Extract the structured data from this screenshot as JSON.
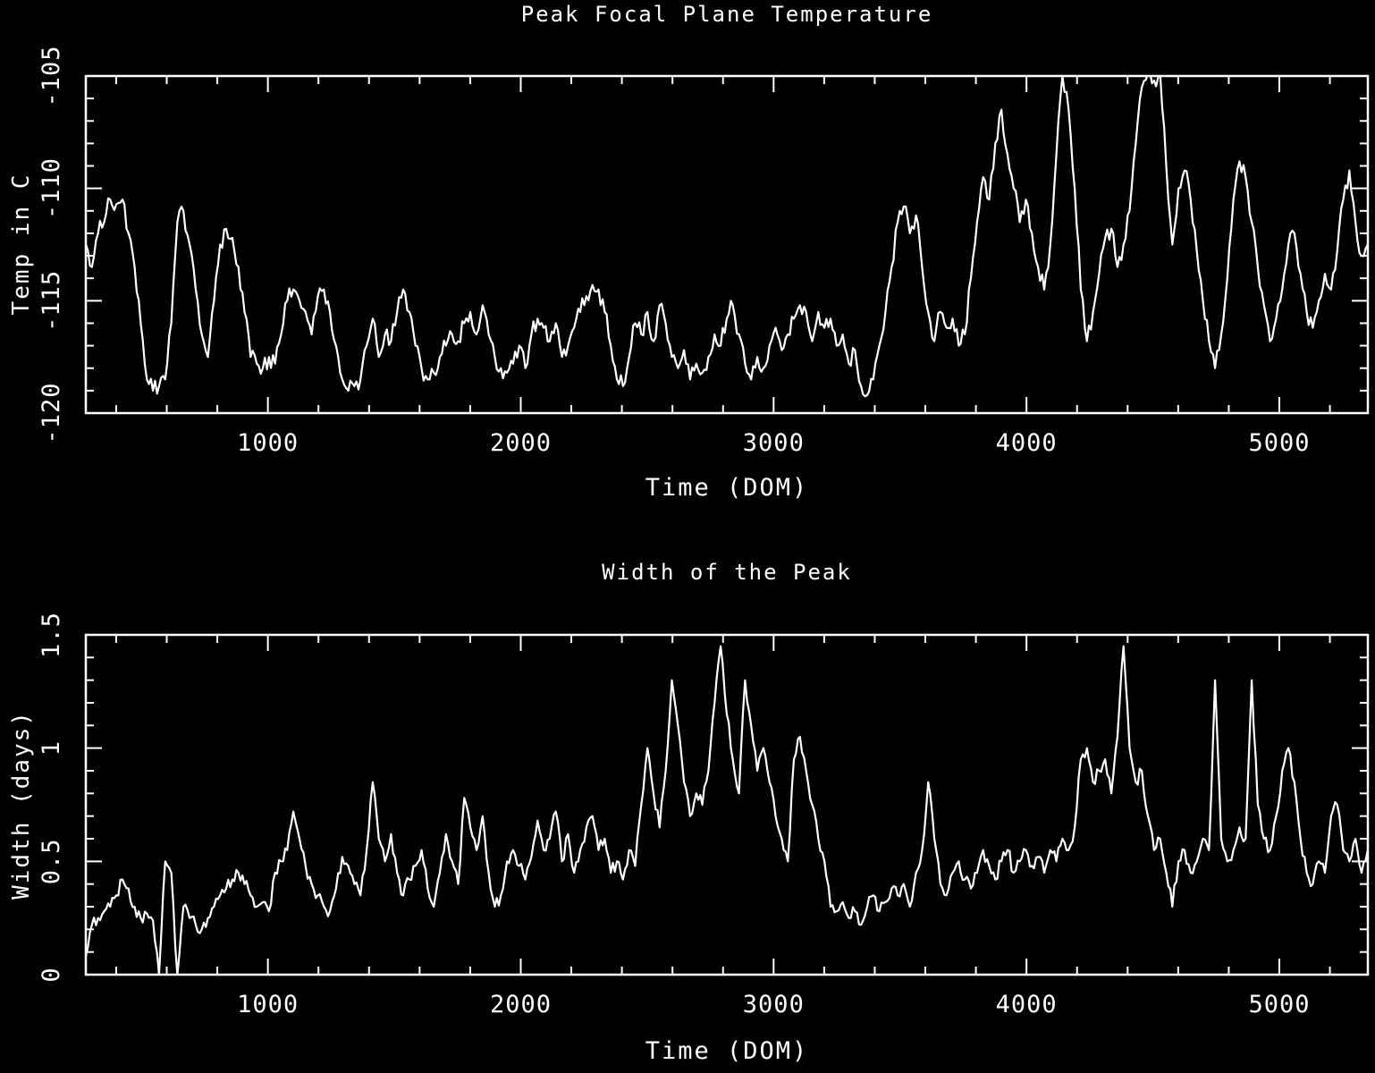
{
  "page": {
    "background": "#000000",
    "plot_color": "#ffffff"
  },
  "chart_data": [
    {
      "type": "line",
      "title": "Peak Focal Plane Temperature",
      "xlabel": "Time (DOM)",
      "ylabel": "Temp in C",
      "xlim": [
        280,
        5350
      ],
      "ylim": [
        -120,
        -105
      ],
      "grid": false,
      "legend": "none",
      "x_major_ticks": [
        1000,
        2000,
        3000,
        4000,
        5000
      ],
      "x_tick_labels": [
        "1000",
        "2000",
        "3000",
        "4000",
        "5000"
      ],
      "x_minor_step": 200,
      "y_major_ticks": [
        -120,
        -115,
        -110,
        -105
      ],
      "y_tick_labels": [
        "-120",
        "-115",
        "-110",
        "-105"
      ],
      "y_minor_step": 1,
      "x": {
        "start": 280,
        "step": 24.14,
        "count": 211
      },
      "y": [
        -112.5,
        -113.5,
        -112,
        -111.5,
        -110.5,
        -110.7,
        -110.5,
        -112,
        -113.5,
        -116,
        -118.5,
        -119,
        -118.8,
        -118.5,
        -116,
        -111.5,
        -111,
        -112.5,
        -114.5,
        -116.5,
        -117.5,
        -115,
        -112.5,
        -111.8,
        -112.2,
        -113.5,
        -115.5,
        -117.5,
        -117.8,
        -118,
        -117.5,
        -117.8,
        -116.5,
        -115,
        -114.5,
        -115,
        -115.5,
        -116.5,
        -114.8,
        -114.5,
        -115.5,
        -117,
        -118.5,
        -119,
        -118.8,
        -118.5,
        -117,
        -115.8,
        -117.5,
        -116.5,
        -116.8,
        -115.5,
        -114.5,
        -115.5,
        -117,
        -118,
        -118.5,
        -118.2,
        -117.5,
        -117,
        -116.5,
        -116.8,
        -116,
        -115.5,
        -116.5,
        -115.2,
        -116.5,
        -117.5,
        -118,
        -118.2,
        -117.8,
        -117,
        -118,
        -116.5,
        -115.8,
        -116.2,
        -116.8,
        -116,
        -117.5,
        -117,
        -116.2,
        -115.5,
        -114.8,
        -114.3,
        -114.5,
        -115.5,
        -117,
        -118.5,
        -118.8,
        -117.5,
        -116,
        -116.5,
        -115.5,
        -116.8,
        -115.2,
        -116,
        -117.5,
        -118,
        -117.2,
        -118.5,
        -117.8,
        -118.2,
        -117.5,
        -116.5,
        -117,
        -115.8,
        -115.2,
        -116.5,
        -117.8,
        -118.5,
        -117.5,
        -118,
        -117,
        -116.2,
        -117.2,
        -116.5,
        -115.8,
        -115.2,
        -115.5,
        -116.8,
        -115.5,
        -116.2,
        -115.8,
        -117,
        -116.5,
        -117.8,
        -117.2,
        -118.8,
        -119.2,
        -118.5,
        -117,
        -115.5,
        -113.5,
        -111.5,
        -110.8,
        -112,
        -111.2,
        -113.5,
        -115.5,
        -116.8,
        -115.5,
        -116.2,
        -115.8,
        -117,
        -116.5,
        -114,
        -111.5,
        -109.5,
        -110.5,
        -108,
        -106.5,
        -108.5,
        -110,
        -111.5,
        -110.5,
        -112,
        -113.5,
        -114.5,
        -112.5,
        -108.5,
        -105,
        -106.5,
        -110,
        -114.5,
        -116.8,
        -115.5,
        -113.8,
        -112.2,
        -111.8,
        -113.5,
        -112.5,
        -111,
        -108,
        -105.5,
        -104.8,
        -105.2,
        -104.9,
        -109,
        -112.5,
        -110,
        -109.2,
        -110.5,
        -112.8,
        -115,
        -116.8,
        -118,
        -116.5,
        -114,
        -110.5,
        -108.8,
        -109.5,
        -111.5,
        -113.5,
        -115.2,
        -116.8,
        -115.8,
        -114.5,
        -112.5,
        -112,
        -113.8,
        -115.5,
        -116.2,
        -115,
        -113.8,
        -114.5,
        -112.8,
        -110.5,
        -109.2,
        -111.5,
        -113,
        -112.5
      ]
    },
    {
      "type": "line",
      "title": "Width of the Peak",
      "xlabel": "Time (DOM)",
      "ylabel": "Width (days)",
      "xlim": [
        280,
        5350
      ],
      "ylim": [
        0,
        1.5
      ],
      "grid": false,
      "legend": "none",
      "x_major_ticks": [
        1000,
        2000,
        3000,
        4000,
        5000
      ],
      "x_tick_labels": [
        "1000",
        "2000",
        "3000",
        "4000",
        "5000"
      ],
      "x_minor_step": 200,
      "y_major_ticks": [
        0,
        0.5,
        1,
        1.5
      ],
      "y_tick_labels": [
        "0",
        "0.5",
        "1",
        "1.5"
      ],
      "y_minor_step": 0.1,
      "x": {
        "start": 280,
        "step": 24.14,
        "count": 211
      },
      "y": [
        0.08,
        0.22,
        0.25,
        0.28,
        0.3,
        0.35,
        0.42,
        0.38,
        0.3,
        0.25,
        0.27,
        0.24,
        0.0,
        0.5,
        0.45,
        0.0,
        0.3,
        0.25,
        0.22,
        0.2,
        0.25,
        0.3,
        0.35,
        0.38,
        0.42,
        0.45,
        0.4,
        0.35,
        0.3,
        0.32,
        0.28,
        0.45,
        0.5,
        0.55,
        0.72,
        0.6,
        0.48,
        0.4,
        0.35,
        0.3,
        0.28,
        0.38,
        0.52,
        0.48,
        0.4,
        0.35,
        0.55,
        0.85,
        0.6,
        0.5,
        0.62,
        0.45,
        0.35,
        0.42,
        0.48,
        0.55,
        0.38,
        0.3,
        0.45,
        0.62,
        0.5,
        0.4,
        0.78,
        0.65,
        0.55,
        0.7,
        0.45,
        0.3,
        0.35,
        0.5,
        0.55,
        0.48,
        0.42,
        0.52,
        0.68,
        0.55,
        0.6,
        0.72,
        0.5,
        0.62,
        0.45,
        0.55,
        0.65,
        0.7,
        0.55,
        0.6,
        0.45,
        0.5,
        0.42,
        0.55,
        0.48,
        0.75,
        1.0,
        0.8,
        0.65,
        0.9,
        1.3,
        1.1,
        0.85,
        0.7,
        0.8,
        0.75,
        0.9,
        1.2,
        1.45,
        1.15,
        0.95,
        0.8,
        1.3,
        1.1,
        0.9,
        1.0,
        0.85,
        0.7,
        0.6,
        0.5,
        0.95,
        1.05,
        0.9,
        0.75,
        0.6,
        0.5,
        0.3,
        0.28,
        0.32,
        0.25,
        0.28,
        0.22,
        0.3,
        0.35,
        0.28,
        0.32,
        0.38,
        0.35,
        0.4,
        0.3,
        0.45,
        0.55,
        0.85,
        0.6,
        0.4,
        0.35,
        0.45,
        0.5,
        0.42,
        0.38,
        0.45,
        0.55,
        0.48,
        0.42,
        0.5,
        0.55,
        0.45,
        0.5,
        0.55,
        0.48,
        0.52,
        0.45,
        0.55,
        0.5,
        0.6,
        0.55,
        0.65,
        0.95,
        1.0,
        0.85,
        0.9,
        0.95,
        0.8,
        1.05,
        1.45,
        1.0,
        0.85,
        0.9,
        0.7,
        0.55,
        0.6,
        0.45,
        0.3,
        0.5,
        0.55,
        0.45,
        0.5,
        0.6,
        0.55,
        1.3,
        0.6,
        0.5,
        0.55,
        0.65,
        0.6,
        1.3,
        0.75,
        0.6,
        0.55,
        0.7,
        0.9,
        1.0,
        0.85,
        0.6,
        0.45,
        0.4,
        0.5,
        0.45,
        0.7,
        0.75,
        0.55,
        0.5,
        0.6,
        0.45,
        0.55
      ]
    }
  ]
}
